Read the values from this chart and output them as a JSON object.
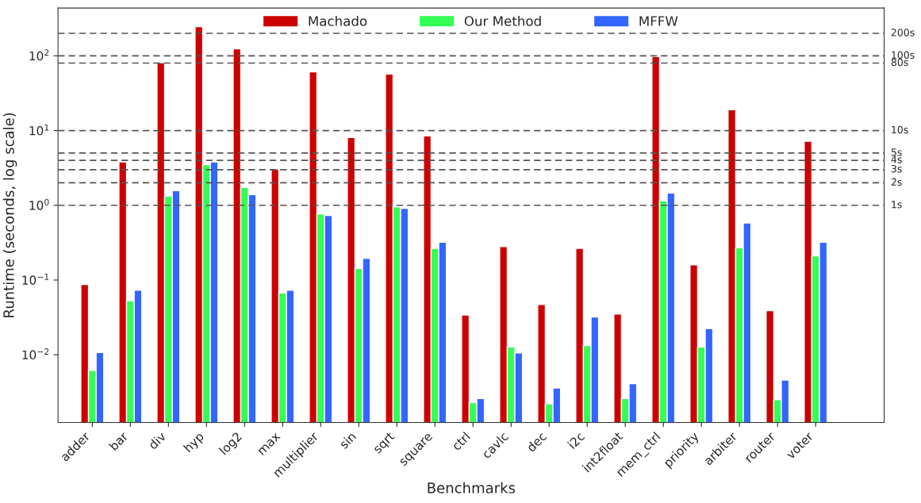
{
  "chart_data": {
    "type": "bar",
    "xlabel": "Benchmarks",
    "ylabel": "Runtime (seconds, log scale)",
    "categories": [
      "adder",
      "bar",
      "div",
      "hyp",
      "log2",
      "max",
      "multiplier",
      "sin",
      "sqrt",
      "square",
      "ctrl",
      "cavlc",
      "dec",
      "i2c",
      "int2float",
      "mem_ctrl",
      "priority",
      "arbiter",
      "router",
      "voter"
    ],
    "series": [
      {
        "name": "Machado",
        "color": "#cc0000",
        "values": [
          0.087,
          3.8,
          81,
          246,
          124,
          3.05,
          61,
          8.1,
          57,
          8.5,
          0.034,
          0.28,
          0.047,
          0.265,
          0.035,
          98,
          0.16,
          19,
          0.039,
          7.2
        ]
      },
      {
        "name": "Our Method",
        "color": "#33ff55",
        "values": [
          0.0062,
          0.053,
          1.33,
          3.5,
          1.73,
          0.067,
          0.77,
          0.143,
          0.95,
          0.265,
          0.0023,
          0.0127,
          0.0022,
          0.0133,
          0.0026,
          1.15,
          0.0127,
          0.27,
          0.0025,
          0.21
        ]
      },
      {
        "name": "MFFW",
        "color": "#3366ff",
        "values": [
          0.0107,
          0.073,
          1.57,
          3.8,
          1.39,
          0.073,
          0.73,
          0.195,
          0.91,
          0.32,
          0.0026,
          0.0106,
          0.0036,
          0.032,
          0.0041,
          1.46,
          0.0224,
          0.58,
          0.0046,
          0.32
        ]
      }
    ],
    "log": "y",
    "ylim": [
      0.00124,
      436
    ],
    "yticks": [
      {
        "value": 0.01,
        "label": "10$^{−2}$"
      },
      {
        "value": 0.1,
        "label": "10$^{−1}$"
      },
      {
        "value": 1,
        "label": "10$^{0}$"
      },
      {
        "value": 10,
        "label": "10$^{1}$"
      },
      {
        "value": 100,
        "label": "10$^{2}$"
      }
    ],
    "ref_lines": [
      {
        "axis": "y",
        "value": 200,
        "label": "200s",
        "color": "#555555",
        "line_style": "dashed"
      },
      {
        "axis": "y",
        "value": 100,
        "label": "100s",
        "color": "#555555",
        "line_style": "dashed"
      },
      {
        "axis": "y",
        "value": 80,
        "label": "80s",
        "color": "#555555",
        "line_style": "dashed"
      },
      {
        "axis": "y",
        "value": 10,
        "label": "10s",
        "color": "#555555",
        "line_style": "dashed"
      },
      {
        "axis": "y",
        "value": 5,
        "label": "5s",
        "color": "#555555",
        "line_style": "dashed"
      },
      {
        "axis": "y",
        "value": 4,
        "label": "4s",
        "color": "#555555",
        "line_style": "dashed"
      },
      {
        "axis": "y",
        "value": 3,
        "label": "3s",
        "color": "#555555",
        "line_style": "dashed"
      },
      {
        "axis": "y",
        "value": 2,
        "label": "2s",
        "color": "#555555",
        "line_style": "dashed"
      },
      {
        "axis": "y",
        "value": 1,
        "label": "1s",
        "color": "#555555",
        "line_style": "dashed"
      }
    ],
    "legend": "top",
    "grid": false
  }
}
